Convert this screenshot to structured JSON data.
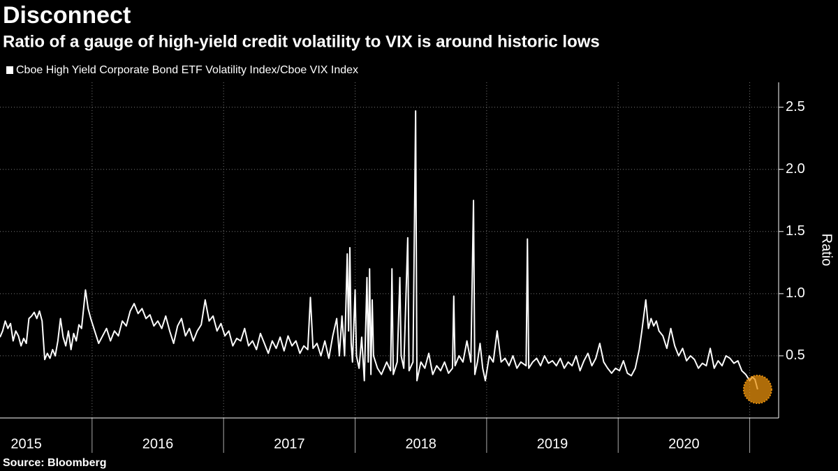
{
  "chart_data": {
    "type": "line",
    "title": "Disconnect",
    "subtitle": "Ratio of a gauge of high-yield credit volatility to VIX is around historic lows",
    "y_label": "Ratio",
    "source": "Source: Bloomberg",
    "series_name": "Cboe High Yield Corporate Bond ETF Volatility Index/Cboe VIX Index",
    "color": "#ffffff",
    "highlight_color": "#e8900c",
    "xlim": [
      2015.3,
      2021.22
    ],
    "xticks": [
      {
        "value": 2015.5,
        "label": "2015"
      },
      {
        "value": 2016.5,
        "label": "2016"
      },
      {
        "value": 2017.5,
        "label": "2017"
      },
      {
        "value": 2018.5,
        "label": "2018"
      },
      {
        "value": 2019.5,
        "label": "2019"
      },
      {
        "value": 2020.5,
        "label": "2020"
      }
    ],
    "xgrid": [
      2016,
      2017,
      2018,
      2019,
      2020,
      2021
    ],
    "ylim": [
      0,
      2.7
    ],
    "yticks": [
      0.5,
      {
        "value": 1,
        "label": "1.0"
      },
      1.5,
      {
        "value": 2,
        "label": "2.0"
      },
      2.5
    ],
    "grid": true,
    "x": [
      2015.3,
      2015.32,
      2015.34,
      2015.36,
      2015.38,
      2015.4,
      2015.42,
      2015.44,
      2015.46,
      2015.48,
      2015.5,
      2015.52,
      2015.54,
      2015.56,
      2015.58,
      2015.6,
      2015.62,
      2015.64,
      2015.66,
      2015.68,
      2015.7,
      2015.72,
      2015.74,
      2015.76,
      2015.78,
      2015.8,
      2015.82,
      2015.84,
      2015.86,
      2015.88,
      2015.9,
      2015.92,
      2015.95,
      2015.97,
      2015.99,
      2016.02,
      2016.05,
      2016.08,
      2016.11,
      2016.14,
      2016.17,
      2016.2,
      2016.23,
      2016.26,
      2016.29,
      2016.32,
      2016.35,
      2016.38,
      2016.41,
      2016.44,
      2016.47,
      2016.5,
      2016.53,
      2016.56,
      2016.59,
      2016.62,
      2016.65,
      2016.68,
      2016.71,
      2016.74,
      2016.77,
      2016.8,
      2016.83,
      2016.86,
      2016.89,
      2016.92,
      2016.95,
      2016.98,
      2017.01,
      2017.04,
      2017.07,
      2017.1,
      2017.13,
      2017.16,
      2017.19,
      2017.22,
      2017.25,
      2017.28,
      2017.31,
      2017.34,
      2017.37,
      2017.4,
      2017.43,
      2017.46,
      2017.49,
      2017.52,
      2017.55,
      2017.58,
      2017.61,
      2017.64,
      2017.66,
      2017.68,
      2017.71,
      2017.74,
      2017.77,
      2017.8,
      2017.83,
      2017.86,
      2017.88,
      2017.9,
      2017.92,
      2017.94,
      2017.95,
      2017.96,
      2017.97,
      2017.98,
      2018.0,
      2018.01,
      2018.03,
      2018.05,
      2018.07,
      2018.09,
      2018.1,
      2018.11,
      2018.12,
      2018.13,
      2018.14,
      2018.17,
      2018.2,
      2018.24,
      2018.27,
      2018.28,
      2018.29,
      2018.32,
      2018.34,
      2018.35,
      2018.37,
      2018.4,
      2018.41,
      2018.44,
      2018.46,
      2018.47,
      2018.5,
      2018.53,
      2018.56,
      2018.59,
      2018.62,
      2018.65,
      2018.68,
      2018.71,
      2018.74,
      2018.75,
      2018.76,
      2018.79,
      2018.82,
      2018.85,
      2018.88,
      2018.9,
      2018.91,
      2018.93,
      2018.95,
      2018.97,
      2018.99,
      2019.02,
      2019.05,
      2019.08,
      2019.11,
      2019.14,
      2019.17,
      2019.2,
      2019.23,
      2019.26,
      2019.3,
      2019.31,
      2019.32,
      2019.35,
      2019.38,
      2019.41,
      2019.44,
      2019.47,
      2019.5,
      2019.53,
      2019.56,
      2019.59,
      2019.62,
      2019.65,
      2019.68,
      2019.71,
      2019.74,
      2019.77,
      2019.8,
      2019.83,
      2019.86,
      2019.89,
      2019.92,
      2019.95,
      2019.98,
      2020.01,
      2020.04,
      2020.07,
      2020.1,
      2020.13,
      2020.16,
      2020.18,
      2020.21,
      2020.23,
      2020.25,
      2020.27,
      2020.29,
      2020.31,
      2020.34,
      2020.37,
      2020.4,
      2020.43,
      2020.46,
      2020.49,
      2020.52,
      2020.55,
      2020.58,
      2020.61,
      2020.64,
      2020.67,
      2020.7,
      2020.73,
      2020.76,
      2020.79,
      2020.82,
      2020.85,
      2020.88,
      2020.91,
      2020.94,
      2020.97,
      2021.0,
      2021.02,
      2021.04,
      2021.06
    ],
    "values": [
      0.65,
      0.7,
      0.78,
      0.72,
      0.76,
      0.62,
      0.7,
      0.66,
      0.58,
      0.64,
      0.6,
      0.8,
      0.82,
      0.85,
      0.8,
      0.86,
      0.78,
      0.47,
      0.52,
      0.48,
      0.55,
      0.5,
      0.62,
      0.8,
      0.65,
      0.58,
      0.7,
      0.55,
      0.68,
      0.62,
      0.75,
      0.72,
      1.03,
      0.88,
      0.8,
      0.7,
      0.6,
      0.66,
      0.72,
      0.62,
      0.7,
      0.66,
      0.78,
      0.74,
      0.86,
      0.92,
      0.84,
      0.88,
      0.8,
      0.83,
      0.74,
      0.78,
      0.72,
      0.82,
      0.7,
      0.6,
      0.74,
      0.8,
      0.66,
      0.72,
      0.62,
      0.7,
      0.75,
      0.95,
      0.78,
      0.82,
      0.7,
      0.76,
      0.66,
      0.7,
      0.58,
      0.64,
      0.62,
      0.72,
      0.58,
      0.62,
      0.55,
      0.68,
      0.6,
      0.52,
      0.62,
      0.56,
      0.65,
      0.54,
      0.66,
      0.58,
      0.62,
      0.52,
      0.58,
      0.55,
      0.97,
      0.56,
      0.6,
      0.5,
      0.62,
      0.48,
      0.66,
      0.8,
      0.5,
      0.82,
      0.5,
      1.32,
      0.7,
      1.37,
      0.6,
      0.45,
      1.03,
      0.5,
      0.4,
      0.65,
      0.3,
      1.13,
      0.45,
      1.2,
      0.35,
      0.95,
      0.5,
      0.4,
      0.35,
      0.45,
      0.38,
      1.2,
      0.35,
      0.45,
      1.13,
      0.5,
      0.4,
      1.45,
      0.38,
      0.45,
      2.47,
      0.3,
      0.45,
      0.4,
      0.52,
      0.35,
      0.42,
      0.38,
      0.45,
      0.36,
      0.4,
      0.98,
      0.42,
      0.5,
      0.45,
      0.62,
      0.45,
      1.75,
      0.35,
      0.45,
      0.6,
      0.4,
      0.3,
      0.5,
      0.45,
      0.7,
      0.45,
      0.48,
      0.42,
      0.5,
      0.4,
      0.45,
      0.42,
      1.44,
      0.4,
      0.45,
      0.48,
      0.42,
      0.5,
      0.44,
      0.46,
      0.42,
      0.48,
      0.4,
      0.45,
      0.42,
      0.5,
      0.38,
      0.46,
      0.52,
      0.42,
      0.48,
      0.6,
      0.45,
      0.4,
      0.36,
      0.4,
      0.38,
      0.46,
      0.36,
      0.34,
      0.4,
      0.55,
      0.7,
      0.95,
      0.72,
      0.8,
      0.74,
      0.78,
      0.7,
      0.66,
      0.56,
      0.72,
      0.58,
      0.5,
      0.56,
      0.46,
      0.5,
      0.47,
      0.4,
      0.44,
      0.42,
      0.56,
      0.4,
      0.46,
      0.42,
      0.5,
      0.48,
      0.44,
      0.46,
      0.38,
      0.35,
      0.3,
      0.33,
      0.31,
      0.23
    ]
  }
}
